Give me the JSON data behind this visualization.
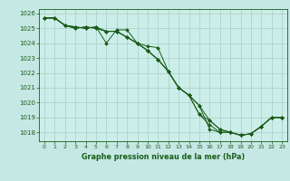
{
  "title": "Graphe pression niveau de la mer (hPa)",
  "bg_color": "#c5e8e4",
  "plot_bg_color": "#cceee8",
  "grid_color": "#a8ccc8",
  "line_color": "#1a5c1a",
  "marker_color": "#1a5c1a",
  "x_labels": [
    "0",
    "1",
    "2",
    "3",
    "4",
    "5",
    "6",
    "7",
    "8",
    "9",
    "10",
    "11",
    "12",
    "13",
    "14",
    "15",
    "16",
    "17",
    "18",
    "19",
    "20",
    "21",
    "22",
    "23"
  ],
  "ylim": [
    1017.4,
    1026.3
  ],
  "yticks": [
    1018,
    1019,
    1020,
    1021,
    1022,
    1023,
    1024,
    1025,
    1026
  ],
  "series": [
    [
      1025.7,
      1025.7,
      1025.2,
      1025.1,
      1025.0,
      1025.1,
      1024.0,
      1024.9,
      1024.9,
      1024.0,
      1023.8,
      1023.7,
      1022.1,
      1021.0,
      1020.5,
      1019.8,
      1018.8,
      1018.2,
      1018.0,
      1017.8,
      1017.9,
      1018.4,
      1019.0,
      1019.0
    ],
    [
      1025.7,
      1025.7,
      1025.2,
      1025.1,
      1025.0,
      1025.1,
      1024.8,
      1024.8,
      1024.4,
      1024.0,
      1023.5,
      1022.9,
      1022.1,
      1021.0,
      1020.5,
      1019.2,
      1018.8,
      1018.2,
      1018.0,
      1017.8,
      1017.9,
      1018.4,
      1019.0,
      1019.0
    ],
    [
      1025.7,
      1025.7,
      1025.2,
      1025.0,
      1025.1,
      1025.0,
      1024.8,
      1024.8,
      1024.4,
      1024.0,
      1023.5,
      1022.9,
      1022.1,
      1021.0,
      1020.5,
      1019.2,
      1018.5,
      1018.0,
      1018.0,
      1017.8,
      1017.9,
      1018.4,
      1019.0,
      1019.0
    ],
    [
      1025.7,
      1025.7,
      1025.2,
      1025.0,
      1025.1,
      1025.0,
      1024.8,
      1024.8,
      1024.4,
      1024.0,
      1023.5,
      1022.9,
      1022.1,
      1021.0,
      1020.5,
      1019.8,
      1018.2,
      1018.0,
      1018.0,
      1017.8,
      1017.9,
      1018.4,
      1019.0,
      1019.0
    ]
  ]
}
